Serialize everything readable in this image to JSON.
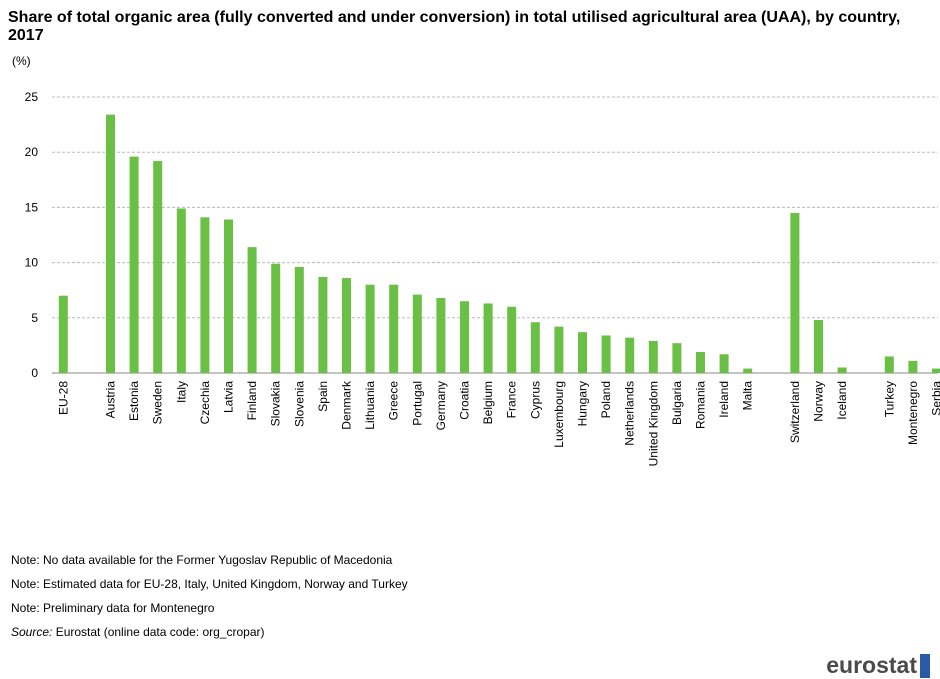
{
  "title": "Share of total organic area (fully converted and under conversion) in total utilised agricultural area (UAA), by country, 2017",
  "unit": "(%)",
  "notes": [
    "Note: No data available for the Former Yugoslav Republic of Macedonia",
    "Note: Estimated data for EU-28, Italy, United Kingdom, Norway and Turkey",
    "Note: Preliminary data for Montenegro"
  ],
  "source_label": "Source:",
  "source_text": " Eurostat (online data code: org_cropar)",
  "logo": "eurostat",
  "colors": {
    "bar": "#6abf45",
    "grid": "#bbbbbb"
  },
  "chart_data": {
    "type": "bar",
    "title": "Share of total organic area (fully converted and under conversion) in total utilised agricultural area (UAA), by country, 2017",
    "ylabel": "(%)",
    "ylim": [
      0,
      25
    ],
    "yticks": [
      0,
      5,
      10,
      15,
      20,
      25
    ],
    "grid": true,
    "groups": [
      {
        "categories": [
          "EU-28"
        ],
        "values": [
          7.0
        ]
      },
      {
        "categories": [
          "Austria",
          "Estonia",
          "Sweden",
          "Italy",
          "Czechia",
          "Latvia",
          "Finland",
          "Slovakia",
          "Slovenia",
          "Spain",
          "Denmark",
          "Lithuania",
          "Greece",
          "Portugal",
          "Germany",
          "Croatia",
          "Belgium",
          "France",
          "Cyprus",
          "Luxembourg",
          "Hungary",
          "Poland",
          "Netherlands",
          "United Kingdom",
          "Bulgaria",
          "Romania",
          "Ireland",
          "Malta"
        ],
        "values": [
          23.4,
          19.6,
          19.2,
          14.9,
          14.1,
          13.9,
          11.4,
          9.9,
          9.6,
          8.7,
          8.6,
          8.0,
          8.0,
          7.1,
          6.8,
          6.5,
          6.3,
          6.0,
          4.6,
          4.2,
          3.7,
          3.4,
          3.2,
          2.9,
          2.7,
          1.9,
          1.7,
          0.4
        ]
      },
      {
        "categories": [
          "Switzerland",
          "Norway",
          "Iceland"
        ],
        "values": [
          14.5,
          4.8,
          0.5
        ]
      },
      {
        "categories": [
          "Turkey",
          "Montenegro",
          "Serbia"
        ],
        "values": [
          1.5,
          1.1,
          0.4
        ]
      }
    ]
  }
}
